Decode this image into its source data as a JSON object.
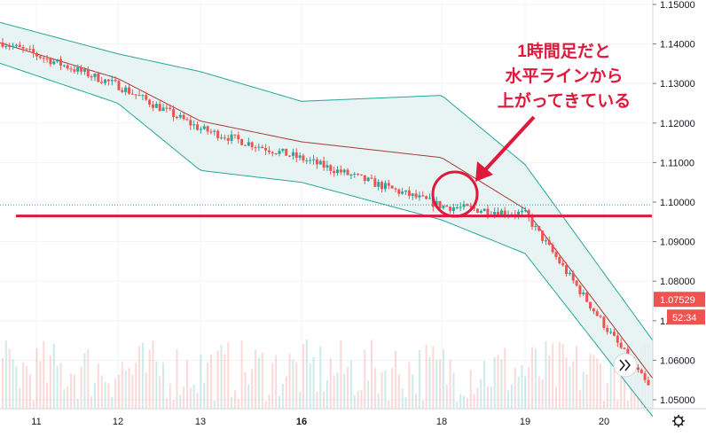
{
  "chart_data": {
    "type": "candlestick",
    "title": "",
    "annotation": [
      "1時間足だと",
      "水平ラインから",
      "上がってきている"
    ],
    "y_axis": {
      "ticks": [
        "1.15000",
        "1.14000",
        "1.13000",
        "1.12000",
        "1.11000",
        "1.10000",
        "1.09000",
        "1.08000",
        "1.07000",
        "1.06000",
        "1.05000"
      ],
      "ylim": [
        1.05,
        1.15
      ]
    },
    "x_axis": {
      "ticks": [
        "11",
        "12",
        "13",
        "16",
        "18",
        "19",
        "20"
      ],
      "bold_ticks": [
        "16"
      ]
    },
    "horizontal_line": {
      "value": 1.0965,
      "color": "#e0193c"
    },
    "dotted_line": {
      "value": 1.0993,
      "color": "#2e9c8f"
    },
    "last_price": {
      "label": "1.07529",
      "value": 1.07529,
      "color": "#ef5350"
    },
    "countdown": {
      "label": "52:34"
    },
    "colors": {
      "up": "#26a69a",
      "down": "#ef5350",
      "band_fill": "#e3f2f1",
      "band_line": "#26a69a",
      "basis_line": "#a83a3a",
      "annotation": "#e0193c"
    },
    "key_points": {
      "x": [
        "11",
        "12",
        "13",
        "16",
        "18",
        "19",
        "20"
      ],
      "close": [
        1.1372,
        1.1295,
        1.1185,
        1.111,
        1.099,
        1.097,
        1.069
      ],
      "bollinger_upper": [
        1.143,
        1.1375,
        1.133,
        1.1255,
        1.127,
        1.1095,
        1.082
      ],
      "bollinger_lower": [
        1.132,
        1.125,
        1.108,
        1.105,
        1.0955,
        1.087,
        1.0615
      ]
    },
    "volume_range": [
      0,
      0.06
    ],
    "grid": true,
    "scroll_button_icon": "double-chevron-right-icon",
    "settings_icon": "gear-icon"
  }
}
